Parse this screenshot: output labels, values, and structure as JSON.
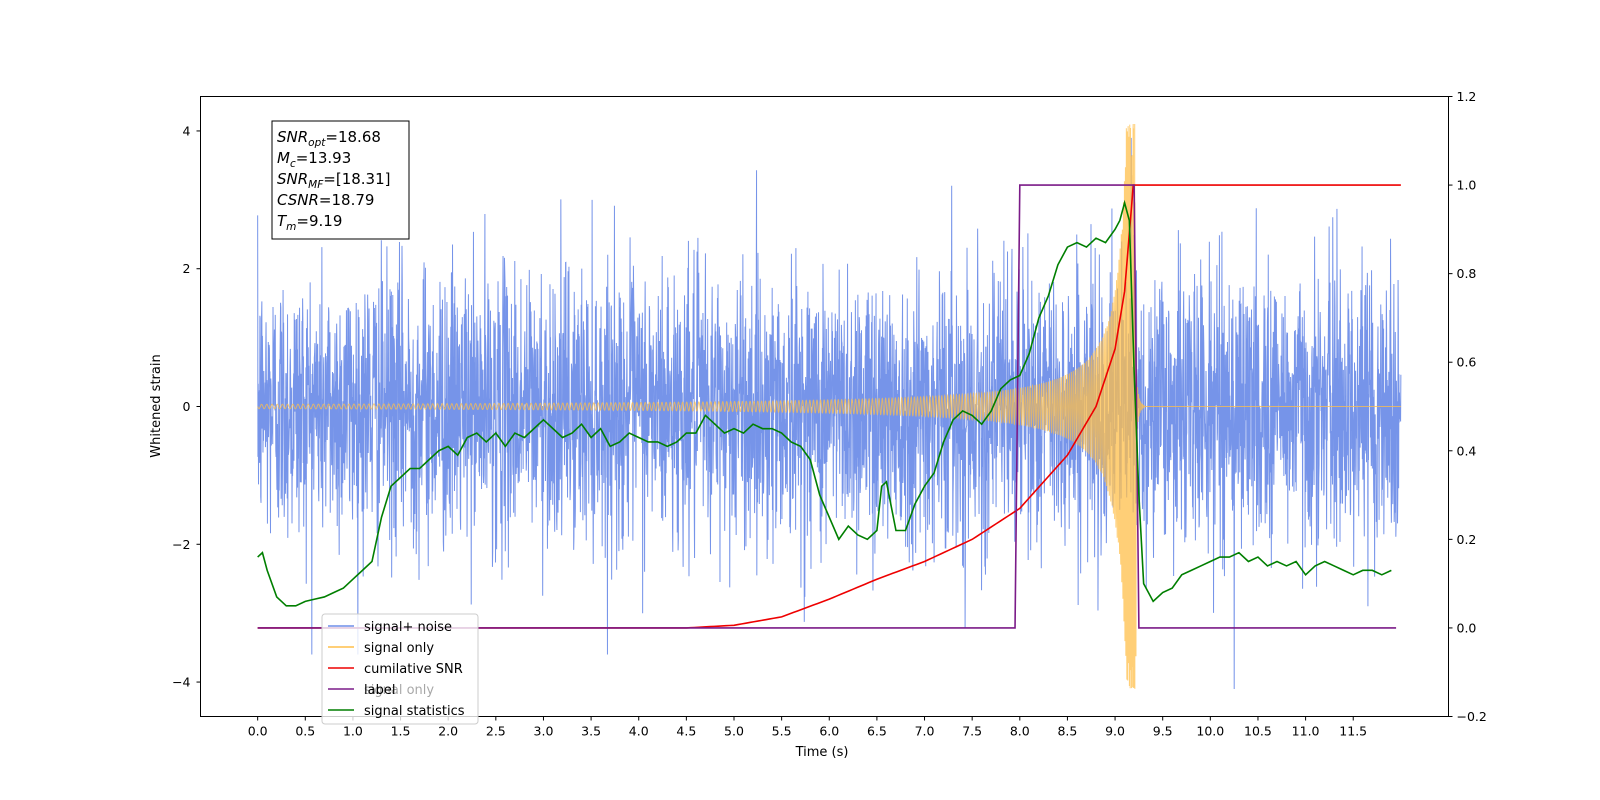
{
  "chart_data": {
    "type": "line",
    "xlabel": "Time (s)",
    "ylabel": "Whitened strain",
    "xlim": [
      -0.6,
      12.5
    ],
    "ylim": [
      -4.5,
      4.5
    ],
    "y2lim": [
      -0.2,
      1.2
    ],
    "x_ticks": [
      "0.0",
      "0.5",
      "1.0",
      "1.5",
      "2.0",
      "2.5",
      "3.0",
      "3.5",
      "4.0",
      "4.5",
      "5.0",
      "5.5",
      "6.0",
      "6.5",
      "7.0",
      "7.5",
      "8.0",
      "8.5",
      "9.0",
      "9.5",
      "10.0",
      "10.5",
      "11.0",
      "11.5"
    ],
    "y_ticks": [
      "4",
      "2",
      "0",
      "−2",
      "−4"
    ],
    "y2_ticks": [
      "1.2",
      "1.0",
      "0.8",
      "0.6",
      "0.4",
      "0.2",
      "0.0",
      "−0.2"
    ],
    "grid": false,
    "legend_position": "lower-left",
    "stats_box": {
      "lines": [
        {
          "main": "SNR",
          "sub": "opt",
          "value": "=18.68"
        },
        {
          "main": "M",
          "sub": "c",
          "value": "=13.93"
        },
        {
          "main": "SNR",
          "sub": "MF",
          "value": "=[18.31]"
        },
        {
          "main": "CSNR",
          "sub": "",
          "value": "=18.79"
        },
        {
          "main": "T",
          "sub": "m",
          "value": "=9.19"
        }
      ]
    },
    "series": [
      {
        "name": "signal+ noise",
        "color": "#6f8ee8",
        "axis": "left",
        "kind": "noise",
        "x_range": [
          0.0,
          12.0
        ],
        "std": 1.0,
        "peak": 3.9,
        "trough": -4.1
      },
      {
        "name": "signal only",
        "color": "#ffbf4a",
        "axis": "left",
        "kind": "chirp",
        "x_range": [
          0.0,
          12.0
        ],
        "merger_time": 9.19,
        "peak": 4.1
      },
      {
        "name": "cumilative SNR",
        "color": "#ee0000",
        "axis": "right",
        "x": [
          0.0,
          4.5,
          5.0,
          5.5,
          6.0,
          6.5,
          7.0,
          7.5,
          8.0,
          8.5,
          8.8,
          9.0,
          9.1,
          9.18,
          9.19,
          12.0
        ],
        "y": [
          0.0,
          0.0,
          0.006,
          0.025,
          0.065,
          0.11,
          0.15,
          0.2,
          0.27,
          0.39,
          0.5,
          0.63,
          0.76,
          0.97,
          1.0,
          1.0
        ]
      },
      {
        "name": "label",
        "color": "#7b1b88",
        "axis": "right",
        "x": [
          0.0,
          7.95,
          8.0,
          9.2,
          9.25,
          11.95
        ],
        "y": [
          0.0,
          0.0,
          1.0,
          1.0,
          0.0,
          0.0
        ]
      },
      {
        "name": "signal statistics",
        "color": "#007f00",
        "axis": "right",
        "x": [
          0.0,
          0.05,
          0.1,
          0.2,
          0.3,
          0.4,
          0.5,
          0.6,
          0.7,
          0.8,
          0.9,
          1.0,
          1.1,
          1.2,
          1.3,
          1.4,
          1.5,
          1.6,
          1.7,
          1.8,
          1.9,
          2.0,
          2.1,
          2.2,
          2.3,
          2.4,
          2.5,
          2.6,
          2.7,
          2.8,
          2.9,
          3.0,
          3.1,
          3.2,
          3.3,
          3.4,
          3.5,
          3.6,
          3.7,
          3.8,
          3.9,
          4.0,
          4.1,
          4.2,
          4.3,
          4.4,
          4.5,
          4.6,
          4.7,
          4.8,
          4.9,
          5.0,
          5.1,
          5.2,
          5.3,
          5.4,
          5.5,
          5.6,
          5.7,
          5.8,
          5.9,
          6.0,
          6.1,
          6.2,
          6.3,
          6.4,
          6.5,
          6.55,
          6.6,
          6.7,
          6.8,
          6.9,
          7.0,
          7.1,
          7.2,
          7.3,
          7.4,
          7.5,
          7.6,
          7.7,
          7.8,
          7.9,
          8.0,
          8.1,
          8.2,
          8.3,
          8.4,
          8.5,
          8.6,
          8.7,
          8.8,
          8.9,
          9.0,
          9.05,
          9.1,
          9.15,
          9.2,
          9.25,
          9.3,
          9.4,
          9.5,
          9.6,
          9.7,
          9.8,
          9.9,
          10.0,
          10.1,
          10.2,
          10.3,
          10.4,
          10.5,
          10.6,
          10.7,
          10.8,
          10.9,
          11.0,
          11.1,
          11.2,
          11.3,
          11.4,
          11.5,
          11.6,
          11.7,
          11.8,
          11.9
        ],
        "y": [
          0.16,
          0.17,
          0.13,
          0.07,
          0.05,
          0.05,
          0.06,
          0.065,
          0.07,
          0.08,
          0.09,
          0.11,
          0.13,
          0.15,
          0.25,
          0.32,
          0.34,
          0.36,
          0.36,
          0.38,
          0.4,
          0.41,
          0.39,
          0.43,
          0.44,
          0.42,
          0.44,
          0.41,
          0.44,
          0.43,
          0.45,
          0.47,
          0.45,
          0.43,
          0.44,
          0.46,
          0.43,
          0.45,
          0.41,
          0.42,
          0.44,
          0.43,
          0.42,
          0.42,
          0.41,
          0.42,
          0.44,
          0.44,
          0.48,
          0.46,
          0.44,
          0.45,
          0.44,
          0.46,
          0.45,
          0.45,
          0.44,
          0.42,
          0.41,
          0.38,
          0.3,
          0.25,
          0.2,
          0.23,
          0.21,
          0.2,
          0.22,
          0.32,
          0.33,
          0.22,
          0.22,
          0.28,
          0.32,
          0.35,
          0.42,
          0.47,
          0.49,
          0.48,
          0.46,
          0.49,
          0.54,
          0.56,
          0.57,
          0.62,
          0.7,
          0.75,
          0.82,
          0.86,
          0.87,
          0.86,
          0.88,
          0.87,
          0.9,
          0.92,
          0.96,
          0.92,
          0.58,
          0.3,
          0.1,
          0.06,
          0.08,
          0.09,
          0.12,
          0.13,
          0.14,
          0.15,
          0.16,
          0.16,
          0.17,
          0.15,
          0.16,
          0.14,
          0.15,
          0.14,
          0.15,
          0.12,
          0.14,
          0.15,
          0.14,
          0.13,
          0.12,
          0.13,
          0.13,
          0.12,
          0.13
        ]
      }
    ],
    "legend_overlap_text": "signal only"
  }
}
